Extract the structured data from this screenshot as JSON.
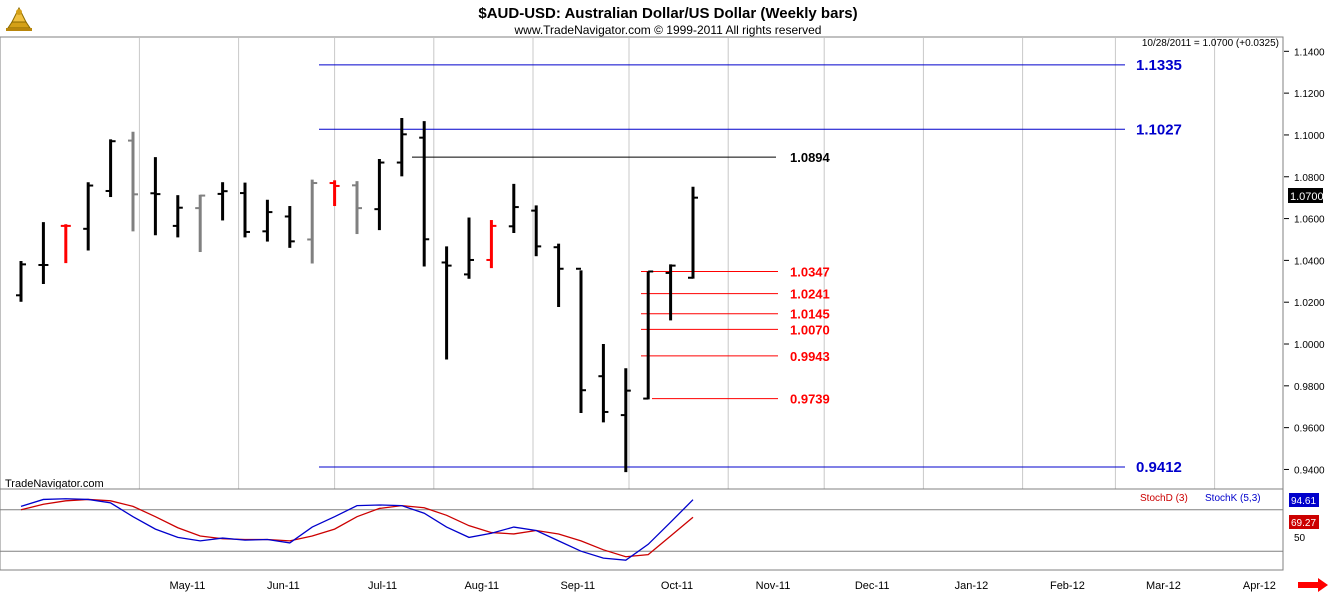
{
  "header": {
    "title": "$AUD-USD:  Australian Dollar/US Dollar  (Weekly bars)",
    "subtitle": "www.TradeNavigator.com © 1999-2011 All rights reserved",
    "last_bar_info": "10/28/2011 = 1.0700 (+0.0325)",
    "watermark": "TradeNavigator.com"
  },
  "colors": {
    "bar_up": "#000000",
    "bar_gray": "#808080",
    "bar_red": "#ff0000",
    "level_blue": "#0000cc",
    "level_black": "#000000",
    "level_red": "#ff0000",
    "stoch_d": "#cc0000",
    "stoch_k": "#0000cc",
    "grid": "#c8c8c8"
  },
  "chart_data": {
    "type": "ohlc",
    "price_axis": {
      "ylim": [
        0.934,
        1.1435
      ],
      "ticks": [
        "1.1400",
        "1.1200",
        "1.1000",
        "1.0800",
        "1.0600",
        "1.0400",
        "1.0200",
        "1.0000",
        "0.9800",
        "0.9600",
        "0.9400"
      ],
      "tick_values": [
        1.14,
        1.12,
        1.1,
        1.08,
        1.06,
        1.04,
        1.02,
        1.0,
        0.98,
        0.96,
        0.94
      ],
      "current_price_label": "1.0700",
      "current_price": 1.07
    },
    "x_axis": {
      "labels": [
        "May-11",
        "Jun-11",
        "Jul-11",
        "Aug-11",
        "Sep-11",
        "Oct-11",
        "Nov-11",
        "Dec-11",
        "Jan-12",
        "Feb-12",
        "Mar-12",
        "Apr-12"
      ]
    },
    "bars": [
      {
        "date": "2011-03-25",
        "o": 1.0233,
        "h": 1.0397,
        "l": 1.0202,
        "c": 1.0381,
        "color": "black"
      },
      {
        "date": "2011-04-01",
        "o": 1.0378,
        "h": 1.0583,
        "l": 1.0287,
        "c": 1.0378,
        "color": "black"
      },
      {
        "date": "2011-04-08",
        "o": 1.0565,
        "h": 1.0573,
        "l": 1.0387,
        "c": 1.0565,
        "color": "red"
      },
      {
        "date": "2011-04-15",
        "o": 1.0551,
        "h": 1.0774,
        "l": 1.0447,
        "c": 1.0758,
        "color": "black"
      },
      {
        "date": "2011-04-22",
        "o": 1.0732,
        "h": 1.0979,
        "l": 1.0703,
        "c": 1.097,
        "color": "black"
      },
      {
        "date": "2011-04-29",
        "o": 1.0973,
        "h": 1.1015,
        "l": 1.0539,
        "c": 1.0716,
        "color": "gray"
      },
      {
        "date": "2011-05-06",
        "o": 1.0721,
        "h": 1.0894,
        "l": 1.052,
        "c": 1.0717,
        "color": "black"
      },
      {
        "date": "2011-05-13",
        "o": 1.0565,
        "h": 1.0712,
        "l": 1.051,
        "c": 1.0652,
        "color": "black"
      },
      {
        "date": "2011-05-20",
        "o": 1.065,
        "h": 1.0714,
        "l": 1.044,
        "c": 1.071,
        "color": "gray"
      },
      {
        "date": "2011-05-27",
        "o": 1.0718,
        "h": 1.0774,
        "l": 1.0591,
        "c": 1.0731,
        "color": "black"
      },
      {
        "date": "2011-06-03",
        "o": 1.0722,
        "h": 1.0772,
        "l": 1.051,
        "c": 1.0536,
        "color": "black"
      },
      {
        "date": "2011-06-10",
        "o": 1.0539,
        "h": 1.069,
        "l": 1.049,
        "c": 1.0631,
        "color": "black"
      },
      {
        "date": "2011-06-17",
        "o": 1.061,
        "h": 1.066,
        "l": 1.046,
        "c": 1.0491,
        "color": "black"
      },
      {
        "date": "2011-06-24",
        "o": 1.05,
        "h": 1.0786,
        "l": 1.0385,
        "c": 1.077,
        "color": "gray"
      },
      {
        "date": "2011-07-01",
        "o": 1.077,
        "h": 1.0783,
        "l": 1.066,
        "c": 1.0756,
        "color": "red"
      },
      {
        "date": "2011-07-08",
        "o": 1.0759,
        "h": 1.0779,
        "l": 1.0526,
        "c": 1.065,
        "color": "gray"
      },
      {
        "date": "2011-07-15",
        "o": 1.0645,
        "h": 1.0885,
        "l": 1.0545,
        "c": 1.0868,
        "color": "black"
      },
      {
        "date": "2011-07-22",
        "o": 1.0868,
        "h": 1.1081,
        "l": 1.0802,
        "c": 1.1003,
        "color": "black"
      },
      {
        "date": "2011-07-29",
        "o": 1.0987,
        "h": 1.1066,
        "l": 1.0371,
        "c": 1.0501,
        "color": "black"
      },
      {
        "date": "2011-08-05",
        "o": 1.039,
        "h": 1.0467,
        "l": 0.9926,
        "c": 1.0375,
        "color": "black"
      },
      {
        "date": "2011-08-12",
        "o": 1.0333,
        "h": 1.0605,
        "l": 1.0312,
        "c": 1.0402,
        "color": "black"
      },
      {
        "date": "2011-08-19",
        "o": 1.0402,
        "h": 1.0593,
        "l": 1.0363,
        "c": 1.0565,
        "color": "red"
      },
      {
        "date": "2011-08-26",
        "o": 1.0563,
        "h": 1.0766,
        "l": 1.0531,
        "c": 1.0655,
        "color": "black"
      },
      {
        "date": "2011-09-02",
        "o": 1.0638,
        "h": 1.0663,
        "l": 1.042,
        "c": 1.0467,
        "color": "black"
      },
      {
        "date": "2011-09-09",
        "o": 1.0463,
        "h": 1.048,
        "l": 1.0177,
        "c": 1.036,
        "color": "black"
      },
      {
        "date": "2011-09-16",
        "o": 1.036,
        "h": 1.0352,
        "l": 0.967,
        "c": 0.9779,
        "color": "black"
      },
      {
        "date": "2011-09-23",
        "o": 0.9846,
        "h": 1.0,
        "l": 0.9625,
        "c": 0.9675,
        "color": "black"
      },
      {
        "date": "2011-09-30",
        "o": 0.966,
        "h": 0.9884,
        "l": 0.9387,
        "c": 0.9777,
        "color": "black"
      },
      {
        "date": "2011-10-07",
        "o": 0.9739,
        "h": 1.0347,
        "l": 0.9735,
        "c": 1.0347,
        "color": "black"
      },
      {
        "date": "2011-10-14",
        "o": 1.034,
        "h": 1.0381,
        "l": 1.0113,
        "c": 1.0375,
        "color": "black"
      },
      {
        "date": "2011-10-21",
        "o": 1.0317,
        "h": 1.0752,
        "l": 1.0313,
        "c": 1.07,
        "color": "black"
      }
    ],
    "levels": [
      {
        "value": 1.1335,
        "label": "1.1335",
        "color": "blue"
      },
      {
        "value": 1.1027,
        "label": "1.1027",
        "color": "blue"
      },
      {
        "value": 1.0894,
        "label": "1.0894",
        "color": "black"
      },
      {
        "value": 1.0347,
        "label": "1.0347",
        "color": "red"
      },
      {
        "value": 1.0241,
        "label": "1.0241",
        "color": "red"
      },
      {
        "value": 1.0145,
        "label": "1.0145",
        "color": "red"
      },
      {
        "value": 1.007,
        "label": "1.0070",
        "color": "red"
      },
      {
        "value": 0.9943,
        "label": "0.9943",
        "color": "red"
      },
      {
        "value": 0.9739,
        "label": "0.9739",
        "color": "red"
      },
      {
        "value": 0.9412,
        "label": "0.9412",
        "color": "blue"
      }
    ],
    "stochastic": {
      "legend": [
        {
          "name": "StochD (3)",
          "color": "#cc0000"
        },
        {
          "name": "StochK (5,3)",
          "color": "#0000cc"
        }
      ],
      "ylim": [
        0,
        100
      ],
      "tick_label": "50",
      "tick_value": 50,
      "k_last_label": "94.61",
      "d_last_label": "69.27",
      "k_values": [
        85,
        95,
        96,
        95,
        90,
        70,
        52,
        40,
        35,
        39,
        36,
        37,
        32,
        55,
        70,
        86,
        87,
        86,
        75,
        55,
        40,
        46,
        55,
        50,
        35,
        20,
        10,
        7,
        30,
        62,
        94.61
      ],
      "d_values": [
        80,
        88,
        93,
        95,
        93,
        85,
        70,
        54,
        42,
        38,
        37,
        37,
        35,
        42,
        52,
        70,
        82,
        86,
        83,
        72,
        57,
        47,
        45,
        50,
        45,
        35,
        22,
        12,
        15,
        42,
        69.27
      ]
    }
  }
}
